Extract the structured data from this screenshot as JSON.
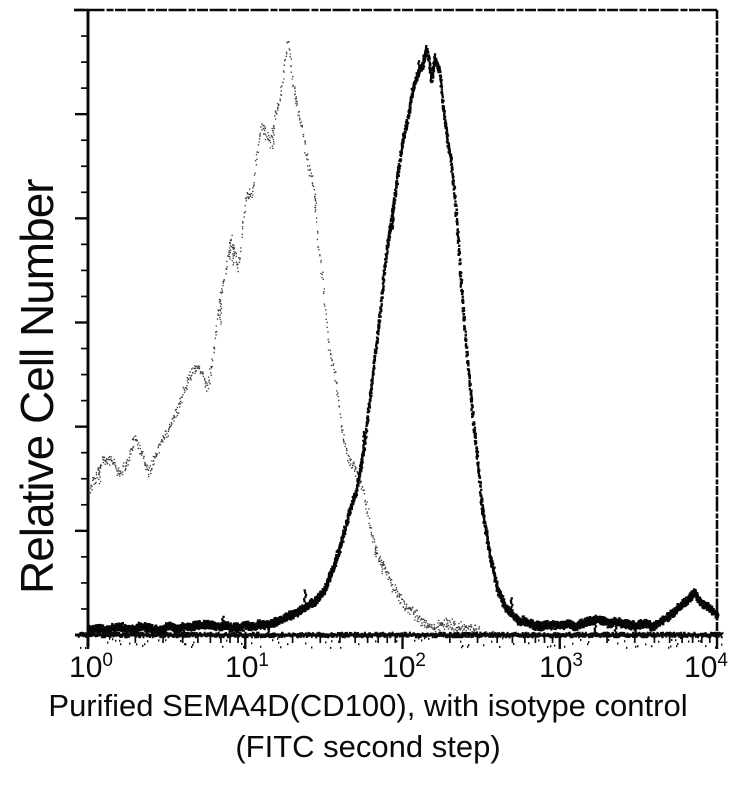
{
  "figure": {
    "background": "#ffffff",
    "ink_color": "#0a0a0a"
  },
  "chart_data": {
    "type": "line",
    "subtype": "flow-cytometry-histogram-overlay",
    "title": "",
    "xlabel_line1": "Purified SEMA4D(CD100), with isotype control",
    "xlabel_line2": "(FITC second step)",
    "ylabel": "Relative Cell Number",
    "x_scale": "log10",
    "xlim": [
      1,
      10000
    ],
    "ylim": [
      0,
      1
    ],
    "grid": false,
    "legend": "none",
    "x_ticks": [
      {
        "base": "10",
        "exp": "0"
      },
      {
        "base": "10",
        "exp": "1"
      },
      {
        "base": "10",
        "exp": "2"
      },
      {
        "base": "10",
        "exp": "3"
      },
      {
        "base": "10",
        "exp": "4"
      }
    ],
    "series": [
      {
        "name": "isotype control",
        "line_style": "speckled-dots",
        "color": "#3d3d3d",
        "peak_x": 18.6,
        "points": [
          [
            1,
            0.22
          ],
          [
            1.26,
            0.28
          ],
          [
            1.58,
            0.25
          ],
          [
            2,
            0.3
          ],
          [
            2.51,
            0.26
          ],
          [
            3.16,
            0.32
          ],
          [
            4,
            0.38
          ],
          [
            5.01,
            0.42
          ],
          [
            5.62,
            0.4
          ],
          [
            6.31,
            0.47
          ],
          [
            7.08,
            0.55
          ],
          [
            7.94,
            0.6
          ],
          [
            8.91,
            0.58
          ],
          [
            10,
            0.67
          ],
          [
            11.2,
            0.73
          ],
          [
            12.6,
            0.8
          ],
          [
            14.1,
            0.78
          ],
          [
            15.8,
            0.85
          ],
          [
            17.8,
            0.92
          ],
          [
            18.6,
            0.95
          ],
          [
            20,
            0.87
          ],
          [
            22.4,
            0.8
          ],
          [
            25.1,
            0.78
          ],
          [
            26.9,
            0.73
          ],
          [
            28.8,
            0.63
          ],
          [
            31.6,
            0.54
          ],
          [
            35.5,
            0.44
          ],
          [
            39.8,
            0.35
          ],
          [
            44.7,
            0.29
          ],
          [
            50.1,
            0.26
          ],
          [
            56.2,
            0.21
          ],
          [
            63.1,
            0.16
          ],
          [
            70.8,
            0.12
          ],
          [
            79.4,
            0.09
          ],
          [
            89.1,
            0.065
          ],
          [
            100,
            0.05
          ],
          [
            126,
            0.03
          ],
          [
            158,
            0.018
          ],
          [
            200,
            0.012
          ],
          [
            251,
            0.009
          ],
          [
            316,
            0.007
          ],
          [
            398,
            0.005
          ]
        ]
      },
      {
        "name": "Purified SEMA4D(CD100)",
        "line_style": "bold-noisy",
        "color": "#060606",
        "peak_x": 158,
        "points": [
          [
            1,
            0.013
          ],
          [
            2,
            0.012
          ],
          [
            3.98,
            0.013
          ],
          [
            7.94,
            0.014
          ],
          [
            12.6,
            0.018
          ],
          [
            15.8,
            0.022
          ],
          [
            20,
            0.03
          ],
          [
            25.1,
            0.045
          ],
          [
            31.6,
            0.07
          ],
          [
            35.5,
            0.1
          ],
          [
            39.8,
            0.14
          ],
          [
            44.7,
            0.19
          ],
          [
            50.1,
            0.23
          ],
          [
            56.2,
            0.3
          ],
          [
            63.1,
            0.42
          ],
          [
            70.8,
            0.53
          ],
          [
            79.4,
            0.63
          ],
          [
            89.1,
            0.72
          ],
          [
            100,
            0.8
          ],
          [
            112,
            0.86
          ],
          [
            126,
            0.91
          ],
          [
            141,
            0.94
          ],
          [
            151,
            0.9
          ],
          [
            158,
            0.95
          ],
          [
            170,
            0.92
          ],
          [
            178,
            0.86
          ],
          [
            200,
            0.78
          ],
          [
            224,
            0.63
          ],
          [
            251,
            0.47
          ],
          [
            282,
            0.33
          ],
          [
            316,
            0.21
          ],
          [
            355,
            0.13
          ],
          [
            398,
            0.07
          ],
          [
            447,
            0.042
          ],
          [
            501,
            0.028
          ],
          [
            562,
            0.022
          ],
          [
            631,
            0.02
          ],
          [
            794,
            0.018
          ],
          [
            1000,
            0.02
          ],
          [
            1585,
            0.018
          ],
          [
            2512,
            0.022
          ],
          [
            3981,
            0.02
          ],
          [
            5012,
            0.028
          ],
          [
            6310,
            0.05
          ],
          [
            7079,
            0.065
          ],
          [
            7943,
            0.045
          ],
          [
            10000,
            0.03
          ]
        ]
      }
    ]
  }
}
